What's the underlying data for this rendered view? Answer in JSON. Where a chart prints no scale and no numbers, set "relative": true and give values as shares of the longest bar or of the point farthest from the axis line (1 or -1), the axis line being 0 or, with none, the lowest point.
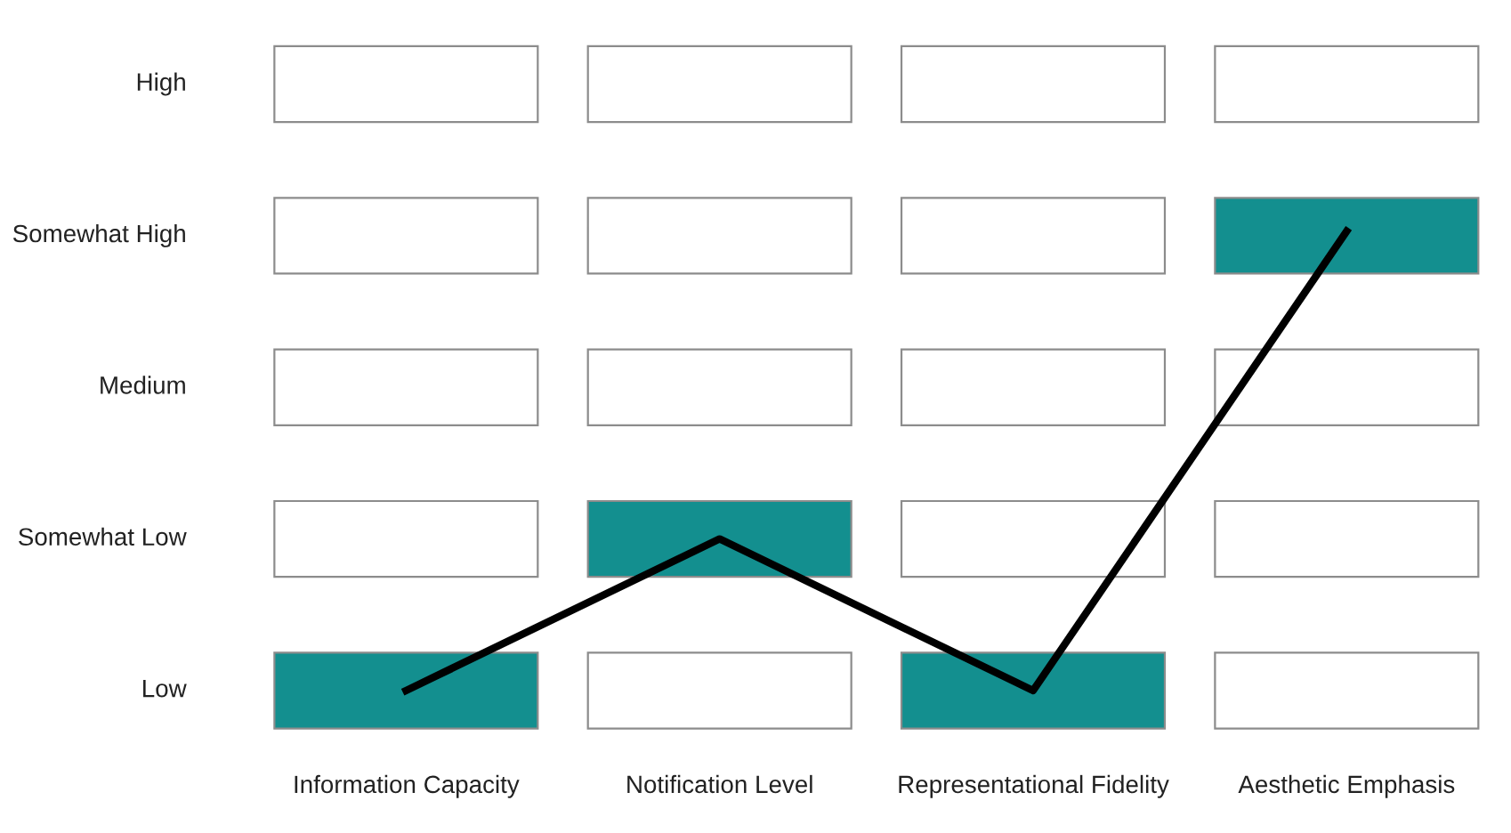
{
  "chart_data": {
    "type": "line",
    "categories": [
      "Information Capacity",
      "Notification Level",
      "Representational Fidelity",
      "Aesthetic Emphasis"
    ],
    "series": [
      {
        "color": "#000000",
        "values": [
          0,
          0.33,
          0,
          1
        ]
      }
    ],
    "relative": true,
    "annotations": [
      "High",
      "Somewhat High",
      "Medium",
      "Somewhat Low",
      "Low"
    ]
  }
}
